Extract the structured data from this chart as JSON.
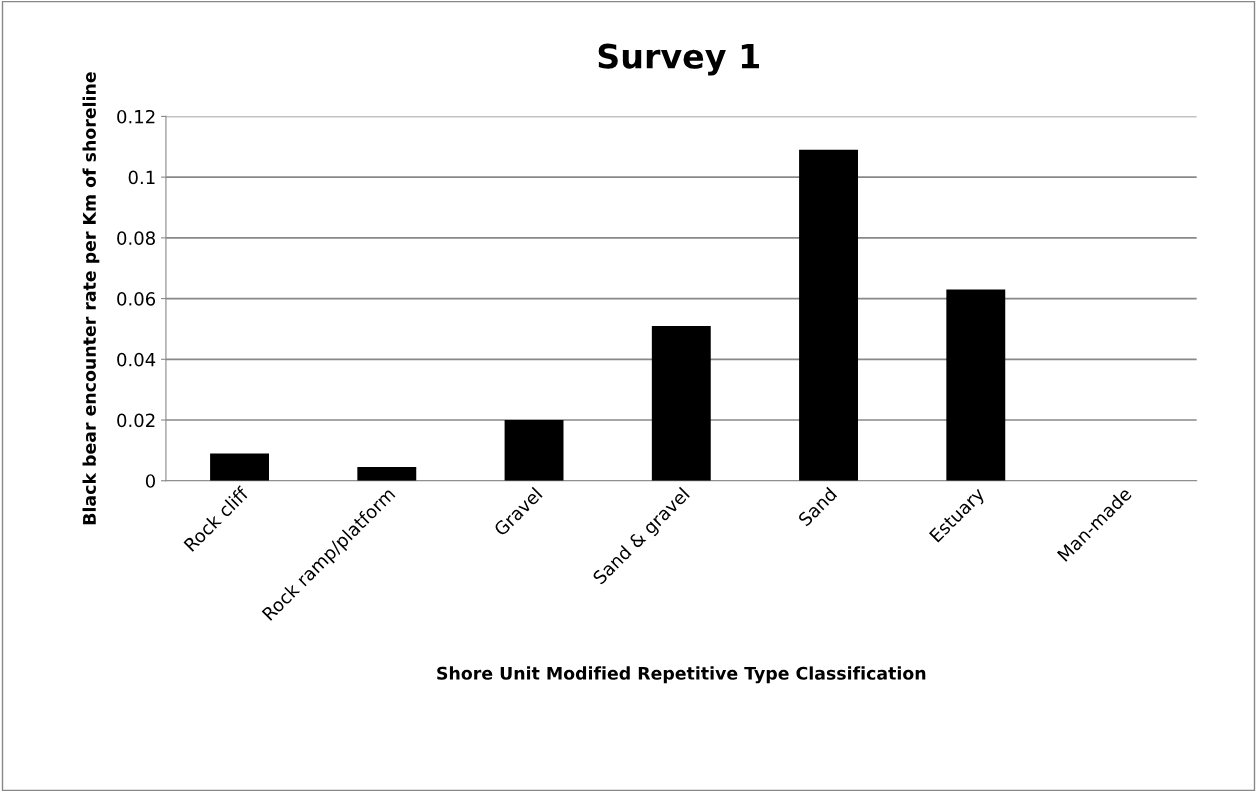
{
  "chart_data": {
    "type": "bar",
    "title": "Survey 1",
    "xlabel": "Shore Unit Modified Repetitive Type Classification",
    "ylabel": "Black bear encounter rate per Km of shoreline",
    "categories": [
      "Rock cliff",
      "Rock ramp/platform",
      "Gravel",
      "Sand & gravel",
      "Sand",
      "Estuary",
      "Man-made"
    ],
    "values": [
      0.009,
      0.0045,
      0.02,
      0.051,
      0.109,
      0.063,
      0
    ],
    "color": "#000000",
    "ylim": [
      0,
      0.12
    ],
    "yticks": [
      {
        "value": 0,
        "label": "0"
      },
      0.02,
      0.04,
      0.06,
      0.08,
      0.1,
      0.12
    ],
    "grid": "y",
    "legend": false
  }
}
